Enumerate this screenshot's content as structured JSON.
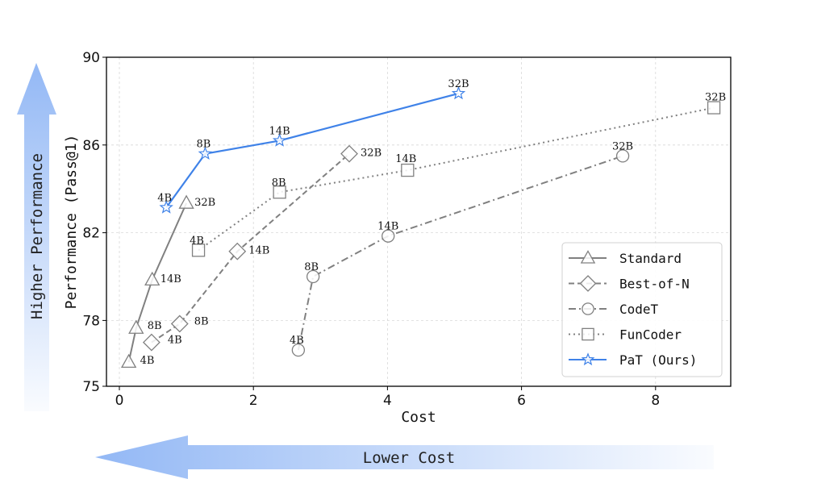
{
  "chart_data": {
    "type": "line",
    "title": "",
    "xlabel": "Cost",
    "ylabel": "Performance (Pass@1)",
    "xlim": [
      -0.2,
      9.2
    ],
    "ylim": [
      75,
      90
    ],
    "xticks": [
      0,
      2,
      4,
      6,
      8
    ],
    "yticks": [
      75,
      78,
      82,
      86,
      90
    ],
    "grid": true,
    "legend_position": "lower right",
    "series": [
      {
        "name": "Standard",
        "marker": "triangle",
        "linestyle": "solid",
        "color": "#808080",
        "points": [
          {
            "label": "4B",
            "x": 0.14,
            "y": 76.1
          },
          {
            "label": "8B",
            "x": 0.25,
            "y": 77.65
          },
          {
            "label": "14B",
            "x": 0.49,
            "y": 79.85
          },
          {
            "label": "32B",
            "x": 1.0,
            "y": 83.35
          }
        ]
      },
      {
        "name": "Best-of-N",
        "marker": "diamond",
        "linestyle": "dashed",
        "color": "#808080",
        "points": [
          {
            "label": "4B",
            "x": 0.48,
            "y": 77.0
          },
          {
            "label": "8B",
            "x": 0.9,
            "y": 77.85
          },
          {
            "label": "14B",
            "x": 1.76,
            "y": 81.15
          },
          {
            "label": "32B",
            "x": 3.43,
            "y": 85.6
          }
        ]
      },
      {
        "name": "CodeT",
        "marker": "circle",
        "linestyle": "dashdot",
        "color": "#808080",
        "points": [
          {
            "label": "4B",
            "x": 2.67,
            "y": 76.65
          },
          {
            "label": "8B",
            "x": 2.89,
            "y": 80.0
          },
          {
            "label": "14B",
            "x": 4.01,
            "y": 81.85
          },
          {
            "label": "32B",
            "x": 7.51,
            "y": 85.5
          }
        ]
      },
      {
        "name": "FunCoder",
        "marker": "square",
        "linestyle": "dotted",
        "color": "#808080",
        "points": [
          {
            "label": "4B",
            "x": 1.18,
            "y": 81.2
          },
          {
            "label": "8B",
            "x": 2.39,
            "y": 83.85
          },
          {
            "label": "14B",
            "x": 4.3,
            "y": 84.85
          },
          {
            "label": "32B",
            "x": 8.87,
            "y": 87.7
          }
        ]
      },
      {
        "name": "PaT (Ours)",
        "marker": "star",
        "linestyle": "solid",
        "color": "#3f82e8",
        "points": [
          {
            "label": "4B",
            "x": 0.7,
            "y": 83.15
          },
          {
            "label": "8B",
            "x": 1.28,
            "y": 85.6
          },
          {
            "label": "14B",
            "x": 2.39,
            "y": 86.2
          },
          {
            "label": "32B",
            "x": 5.06,
            "y": 88.35
          }
        ]
      }
    ],
    "annotations": [
      {
        "text": "Higher Performance",
        "type": "arrow",
        "direction": "up"
      },
      {
        "text": "Lower Cost",
        "type": "arrow",
        "direction": "left"
      }
    ]
  },
  "arrows": {
    "vertical_label": "Higher Performance",
    "horizontal_label": "Lower Cost",
    "color": "#93b8f5"
  },
  "labels": {
    "xlabel": "Cost",
    "ylabel": "Performance (Pass@1)",
    "yticks": [
      "75",
      "78",
      "82",
      "86",
      "90"
    ],
    "xticks": [
      "0",
      "2",
      "4",
      "6",
      "8"
    ]
  },
  "legend": {
    "items": [
      "Standard",
      "Best-of-N",
      "CodeT",
      "FunCoder",
      "PaT (Ours)"
    ]
  }
}
